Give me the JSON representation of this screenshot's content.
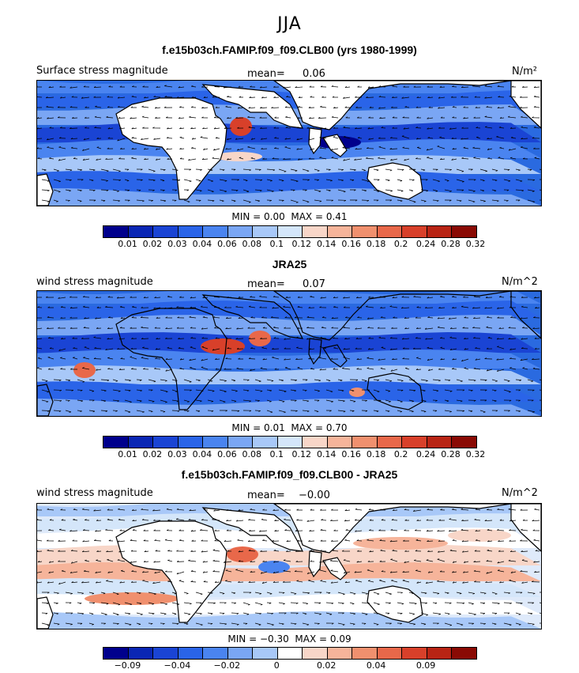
{
  "season": "JJA",
  "panels": [
    {
      "title": "f.e15b03ch.FAMIP.f09_f09.CLB00 (yrs 1980-1999)",
      "left_label": "Surface stress magnitude",
      "mean_label": "mean=",
      "mean_value": "0.06",
      "units": "N/m²",
      "min_label": "MIN =",
      "min_value": "0.00",
      "max_label": "MAX =",
      "max_value": "0.41"
    },
    {
      "title": "JRA25",
      "left_label": "wind stress magnitude",
      "mean_label": "mean=",
      "mean_value": "0.07",
      "units": "N/m^2",
      "min_label": "MIN =",
      "min_value": "0.01",
      "max_label": "MAX =",
      "max_value": "0.70"
    },
    {
      "title": "f.e15b03ch.FAMIP.f09_f09.CLB00 - JRA25",
      "left_label": "wind stress magnitude",
      "mean_label": "mean=",
      "mean_value": "−0.00",
      "units": "N/m^2",
      "min_label": "MIN =",
      "min_value": "−0.30",
      "max_label": "MAX =",
      "max_value": "0.09"
    }
  ],
  "colorbars": {
    "abs": {
      "colors": [
        "#00008c",
        "#0a26b4",
        "#1a44d4",
        "#2a64e8",
        "#4a84f0",
        "#7aa6f4",
        "#a8c8f8",
        "#d4e6fa",
        "#f8d6c8",
        "#f6b49a",
        "#f0906e",
        "#e8684a",
        "#d8402a",
        "#b82414",
        "#8a0a04"
      ],
      "ticks": [
        "0.01",
        "0.02",
        "0.03",
        "0.04",
        "0.06",
        "0.08",
        "0.1",
        "0.12",
        "0.14",
        "0.16",
        "0.18",
        "0.2",
        "0.24",
        "0.28",
        "0.32"
      ]
    },
    "diff": {
      "colors": [
        "#00008c",
        "#0a26b4",
        "#1a44d4",
        "#2a64e8",
        "#4a84f0",
        "#7aa6f4",
        "#a8c8f8",
        "#ffffff",
        "#f8d6c8",
        "#f6b49a",
        "#f0906e",
        "#e8684a",
        "#d8402a",
        "#b82414",
        "#8a0a04"
      ],
      "ticks": [
        "−0.09",
        "",
        "−0.04",
        "",
        "−0.02",
        "",
        "0",
        "",
        "0.02",
        "",
        "0.04",
        "",
        "0.09"
      ]
    }
  },
  "chart_data": [
    {
      "type": "heatmap",
      "title": "f.e15b03ch.FAMIP.f09_f09.CLB00 (yrs 1980-1999)",
      "variable": "Surface stress magnitude",
      "units": "N/m²",
      "mean": 0.06,
      "min": 0.0,
      "max": 0.41,
      "contour_levels": [
        0.01,
        0.02,
        0.03,
        0.04,
        0.06,
        0.08,
        0.1,
        0.12,
        0.14,
        0.16,
        0.18,
        0.2,
        0.24,
        0.28,
        0.32
      ]
    },
    {
      "type": "heatmap",
      "title": "JRA25",
      "variable": "wind stress magnitude",
      "units": "N/m^2",
      "mean": 0.07,
      "min": 0.01,
      "max": 0.7,
      "contour_levels": [
        0.01,
        0.02,
        0.03,
        0.04,
        0.06,
        0.08,
        0.1,
        0.12,
        0.14,
        0.16,
        0.18,
        0.2,
        0.24,
        0.28,
        0.32
      ]
    },
    {
      "type": "heatmap",
      "title": "f.e15b03ch.FAMIP.f09_f09.CLB00 - JRA25",
      "variable": "wind stress magnitude",
      "units": "N/m^2",
      "mean": -0.0,
      "min": -0.3,
      "max": 0.09,
      "contour_level_labels": [
        -0.09,
        -0.04,
        -0.02,
        0,
        0.02,
        0.04,
        0.09
      ]
    }
  ]
}
